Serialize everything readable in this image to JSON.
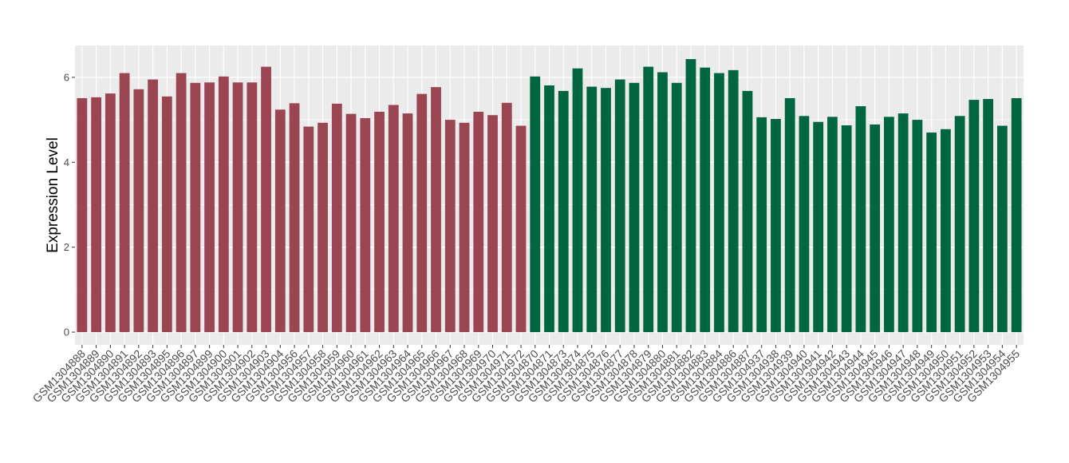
{
  "chart_data": {
    "type": "bar",
    "title": "",
    "xlabel": "",
    "ylabel": "Expression Level",
    "ylim": [
      -0.3,
      6.75
    ],
    "yticks": [
      0,
      2,
      4,
      6
    ],
    "grid": true,
    "legend": "none",
    "colors": {
      "group_a": "#9b4452",
      "group_b": "#006640",
      "panel_bg": "#ebebeb",
      "grid": "#ffffff"
    },
    "categories": [
      "GSM1304888",
      "GSM1304889",
      "GSM1304890",
      "GSM1304891",
      "GSM1304892",
      "GSM1304893",
      "GSM1304895",
      "GSM1304896",
      "GSM1304897",
      "GSM1304899",
      "GSM1304900",
      "GSM1304901",
      "GSM1304902",
      "GSM1304903",
      "GSM1304904",
      "GSM1304956",
      "GSM1304957",
      "GSM1304958",
      "GSM1304959",
      "GSM1304960",
      "GSM1304961",
      "GSM1304962",
      "GSM1304963",
      "GSM1304964",
      "GSM1304965",
      "GSM1304966",
      "GSM1304967",
      "GSM1304968",
      "GSM1304969",
      "GSM1304970",
      "GSM1304971",
      "GSM1304972",
      "GSM1304870",
      "GSM1304871",
      "GSM1304873",
      "GSM1304874",
      "GSM1304875",
      "GSM1304876",
      "GSM1304877",
      "GSM1304878",
      "GSM1304879",
      "GSM1304880",
      "GSM1304881",
      "GSM1304882",
      "GSM1304883",
      "GSM1304884",
      "GSM1304886",
      "GSM1304887",
      "GSM1304937",
      "GSM1304938",
      "GSM1304939",
      "GSM1304940",
      "GSM1304941",
      "GSM1304942",
      "GSM1304943",
      "GSM1304944",
      "GSM1304945",
      "GSM1304946",
      "GSM1304947",
      "GSM1304948",
      "GSM1304949",
      "GSM1304950",
      "GSM1304951",
      "GSM1304952",
      "GSM1304953",
      "GSM1304954",
      "GSM1304955"
    ],
    "values": [
      5.51,
      5.53,
      5.62,
      6.1,
      5.72,
      5.95,
      5.55,
      6.1,
      5.87,
      5.88,
      6.02,
      5.88,
      5.88,
      6.25,
      5.24,
      5.39,
      4.84,
      4.93,
      5.38,
      5.14,
      5.04,
      5.19,
      5.35,
      5.15,
      5.61,
      5.77,
      5.0,
      4.93,
      5.19,
      5.11,
      5.4,
      4.86,
      6.02,
      5.81,
      5.68,
      6.21,
      5.78,
      5.75,
      5.95,
      5.87,
      6.25,
      6.12,
      5.87,
      6.43,
      6.23,
      6.1,
      6.17,
      5.68,
      5.06,
      5.02,
      5.51,
      5.09,
      4.95,
      5.07,
      4.87,
      5.32,
      4.89,
      5.07,
      5.15,
      5.0,
      4.7,
      4.78,
      5.09,
      5.47,
      5.49,
      4.86,
      5.51
    ],
    "groups": [
      "a",
      "a",
      "a",
      "a",
      "a",
      "a",
      "a",
      "a",
      "a",
      "a",
      "a",
      "a",
      "a",
      "a",
      "a",
      "a",
      "a",
      "a",
      "a",
      "a",
      "a",
      "a",
      "a",
      "a",
      "a",
      "a",
      "a",
      "a",
      "a",
      "a",
      "a",
      "a",
      "b",
      "b",
      "b",
      "b",
      "b",
      "b",
      "b",
      "b",
      "b",
      "b",
      "b",
      "b",
      "b",
      "b",
      "b",
      "b",
      "b",
      "b",
      "b",
      "b",
      "b",
      "b",
      "b",
      "b",
      "b",
      "b",
      "b",
      "b",
      "b",
      "b",
      "b",
      "b",
      "b",
      "b",
      "b"
    ]
  }
}
